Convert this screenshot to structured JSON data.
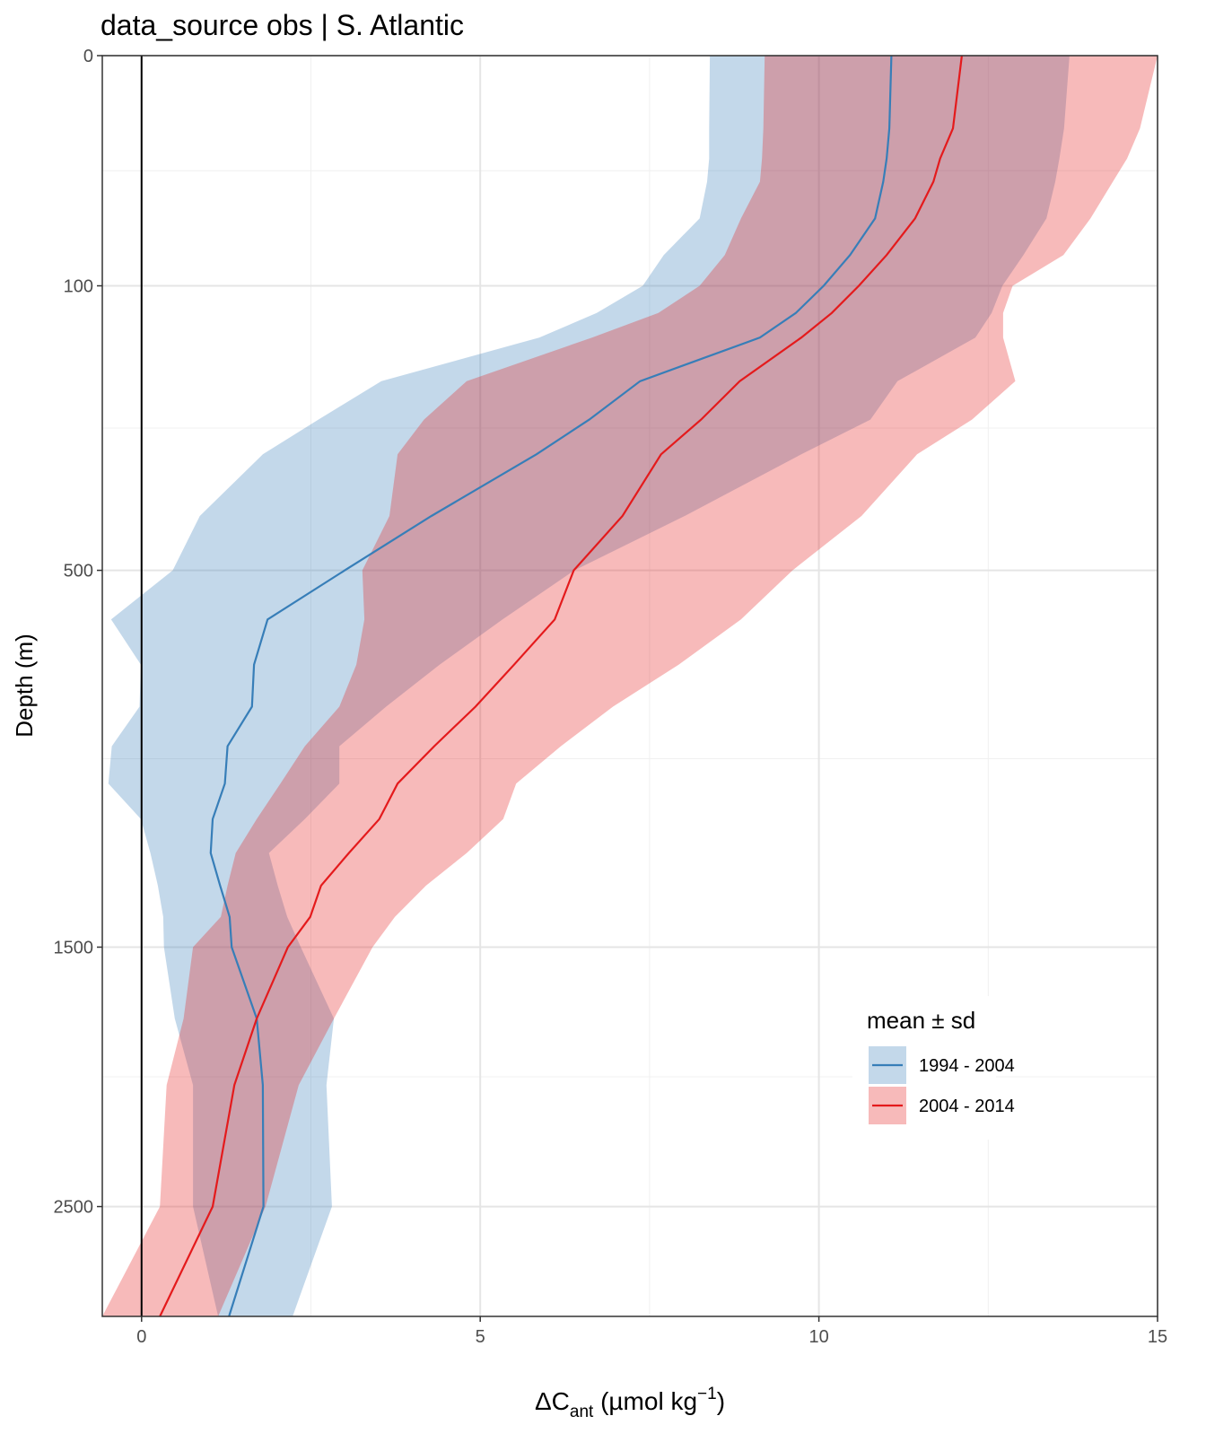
{
  "chart_data": {
    "type": "ribbon_profile",
    "title": "data_source obs | S. Atlantic",
    "y_label": "Depth (m)",
    "x_label": {
      "base": "ΔC",
      "sub": "ant",
      "mid": " (µmol kg",
      "sup": "−1",
      "end": ")"
    },
    "legend_title": "mean ± sd",
    "legend_position": "bottom-right",
    "y_scale": "sqrt",
    "y_reversed": true,
    "grid": true,
    "minor_grid": true,
    "vline": 0,
    "xlim": [
      -0.58,
      15
    ],
    "xticks": [
      0,
      5,
      10,
      15
    ],
    "ylim": [
      0,
      3000
    ],
    "yticks": [
      0,
      100,
      500,
      1500,
      2500
    ],
    "y": [
      0,
      10,
      20,
      30,
      50,
      75,
      100,
      125,
      150,
      200,
      250,
      300,
      400,
      500,
      600,
      700,
      800,
      900,
      1000,
      1100,
      1200,
      1300,
      1400,
      1500,
      1750,
      2000,
      2500,
      3000
    ],
    "series": [
      {
        "name": "1994 - 2004",
        "color": "#377eb8",
        "values": [
          11.07,
          11.04,
          11.0,
          10.95,
          10.83,
          10.46,
          10.07,
          9.66,
          9.13,
          7.36,
          6.61,
          5.83,
          4.28,
          3.0,
          1.86,
          1.66,
          1.63,
          1.27,
          1.23,
          1.05,
          1.02,
          1.16,
          1.3,
          1.33,
          1.7,
          1.79,
          1.8,
          1.29
        ],
        "lower": [
          8.39,
          8.38,
          8.38,
          8.35,
          8.24,
          7.71,
          7.4,
          6.72,
          5.87,
          3.54,
          2.61,
          1.79,
          0.86,
          0.46,
          -0.45,
          -0.01,
          -0.03,
          -0.44,
          -0.49,
          -0.01,
          0.13,
          0.24,
          0.32,
          0.33,
          0.49,
          0.76,
          0.76,
          1.13
        ],
        "upper": [
          13.7,
          13.62,
          13.55,
          13.49,
          13.36,
          13.02,
          12.71,
          12.55,
          12.31,
          11.16,
          10.76,
          9.74,
          8.02,
          6.39,
          5.33,
          4.4,
          3.61,
          2.92,
          2.92,
          2.41,
          1.88,
          2.01,
          2.15,
          2.35,
          2.84,
          2.73,
          2.81,
          2.23
        ]
      },
      {
        "name": "2004 - 2014",
        "color": "#e41a1c",
        "values": [
          12.11,
          11.98,
          11.79,
          11.69,
          11.42,
          11.0,
          10.59,
          10.19,
          9.74,
          8.83,
          8.26,
          7.67,
          7.1,
          6.38,
          6.1,
          5.5,
          4.93,
          4.32,
          3.78,
          3.51,
          3.06,
          2.65,
          2.49,
          2.16,
          1.7,
          1.37,
          1.05,
          0.27
        ],
        "lower": [
          9.2,
          9.18,
          9.16,
          9.13,
          8.85,
          8.61,
          8.24,
          7.63,
          6.65,
          4.8,
          4.17,
          3.78,
          3.66,
          3.26,
          3.29,
          3.17,
          2.92,
          2.41,
          2.05,
          1.7,
          1.39,
          1.27,
          1.17,
          0.76,
          0.62,
          0.37,
          0.27,
          -0.58
        ],
        "upper": [
          15.0,
          14.74,
          14.55,
          14.34,
          14.01,
          13.61,
          12.86,
          12.72,
          12.72,
          12.9,
          12.26,
          11.45,
          10.63,
          9.61,
          8.85,
          7.93,
          6.96,
          6.19,
          5.53,
          5.34,
          4.8,
          4.2,
          3.74,
          3.41,
          2.84,
          2.32,
          1.83,
          1.13
        ]
      }
    ]
  }
}
